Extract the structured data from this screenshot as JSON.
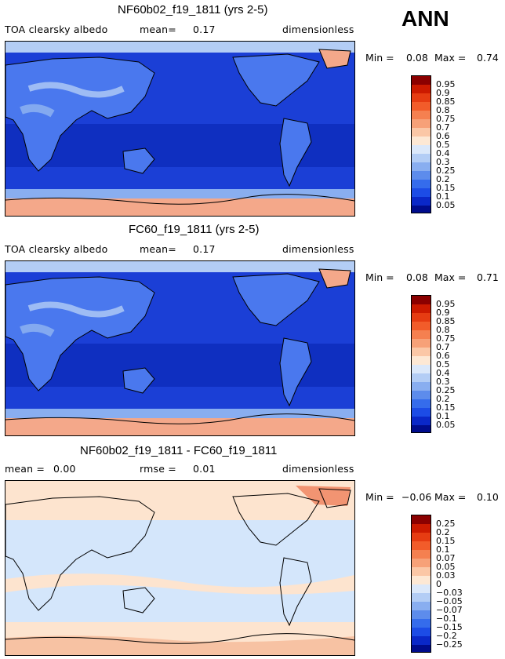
{
  "season": "ANN",
  "panels": [
    {
      "title": "NF60b02_f19_1811 (yrs 2-5)",
      "left_label": "TOA clearsky albedo",
      "mean_label": "mean=",
      "mean_value": "0.17",
      "units": "dimensionless",
      "min_label": "Min =",
      "min_value": "0.08",
      "max_label": "Max =",
      "max_value": "0.74",
      "levels": [
        "0.95",
        "0.9",
        "0.85",
        "0.8",
        "0.75",
        "0.7",
        "0.6",
        "0.5",
        "0.4",
        "0.3",
        "0.25",
        "0.2",
        "0.15",
        "0.1",
        "0.05"
      ]
    },
    {
      "title": "FC60_f19_1811 (yrs 2-5)",
      "left_label": "TOA clearsky albedo",
      "mean_label": "mean=",
      "mean_value": "0.17",
      "units": "dimensionless",
      "min_label": "Min =",
      "min_value": "0.08",
      "max_label": "Max =",
      "max_value": "0.71",
      "levels": [
        "0.95",
        "0.9",
        "0.85",
        "0.8",
        "0.75",
        "0.7",
        "0.6",
        "0.5",
        "0.4",
        "0.3",
        "0.25",
        "0.2",
        "0.15",
        "0.1",
        "0.05"
      ]
    },
    {
      "title": "NF60b02_f19_1811 - FC60_f19_1811",
      "left_label": "mean =",
      "left_value": "0.00",
      "rmse_label": "rmse =",
      "rmse_value": "0.01",
      "units": "dimensionless",
      "min_label": "Min =",
      "min_value": "−0.06",
      "max_label": "Max =",
      "max_value": "0.10",
      "levels": [
        "0.25",
        "0.2",
        "0.15",
        "0.1",
        "0.07",
        "0.05",
        "0.03",
        "0",
        "−0.03",
        "−0.05",
        "−0.07",
        "−0.1",
        "−0.15",
        "−0.2",
        "−0.25"
      ]
    }
  ],
  "colors": {
    "scale": [
      "#8b0000",
      "#cc1a00",
      "#e63c12",
      "#f25c2a",
      "#f58050",
      "#f7a178",
      "#fbc7a6",
      "#fde8d4",
      "#dbe8fa",
      "#b3cdf5",
      "#89aef0",
      "#5d8cec",
      "#356cec",
      "#1c4ce6",
      "#0a28c8",
      "#000c8c"
    ],
    "ocean_abs": "#1b3fd6",
    "ocean_tropics": "#0f2fc0",
    "land_abs": "#4a78ee",
    "ice_abs": "#f4a88a",
    "diff_bg": "#d4e6fb",
    "diff_pos": "#fde4cf",
    "diff_hot": "#f29472"
  },
  "chart_data": [
    {
      "type": "heatmap",
      "title": "NF60b02_f19_1811 (yrs 2-5)",
      "variable": "TOA clearsky albedo",
      "units": "dimensionless",
      "mean": 0.17,
      "min": 0.08,
      "max": 0.74,
      "contour_levels": [
        0.05,
        0.1,
        0.15,
        0.2,
        0.25,
        0.3,
        0.4,
        0.5,
        0.6,
        0.7,
        0.75,
        0.8,
        0.85,
        0.9,
        0.95
      ]
    },
    {
      "type": "heatmap",
      "title": "FC60_f19_1811 (yrs 2-5)",
      "variable": "TOA clearsky albedo",
      "units": "dimensionless",
      "mean": 0.17,
      "min": 0.08,
      "max": 0.71,
      "contour_levels": [
        0.05,
        0.1,
        0.15,
        0.2,
        0.25,
        0.3,
        0.4,
        0.5,
        0.6,
        0.7,
        0.75,
        0.8,
        0.85,
        0.9,
        0.95
      ]
    },
    {
      "type": "heatmap",
      "title": "NF60b02_f19_1811 - FC60_f19_1811",
      "units": "dimensionless",
      "mean": 0.0,
      "rmse": 0.01,
      "min": -0.06,
      "max": 0.1,
      "contour_levels": [
        -0.25,
        -0.2,
        -0.15,
        -0.1,
        -0.07,
        -0.05,
        -0.03,
        0,
        0.03,
        0.05,
        0.07,
        0.1,
        0.15,
        0.2,
        0.25
      ]
    }
  ]
}
